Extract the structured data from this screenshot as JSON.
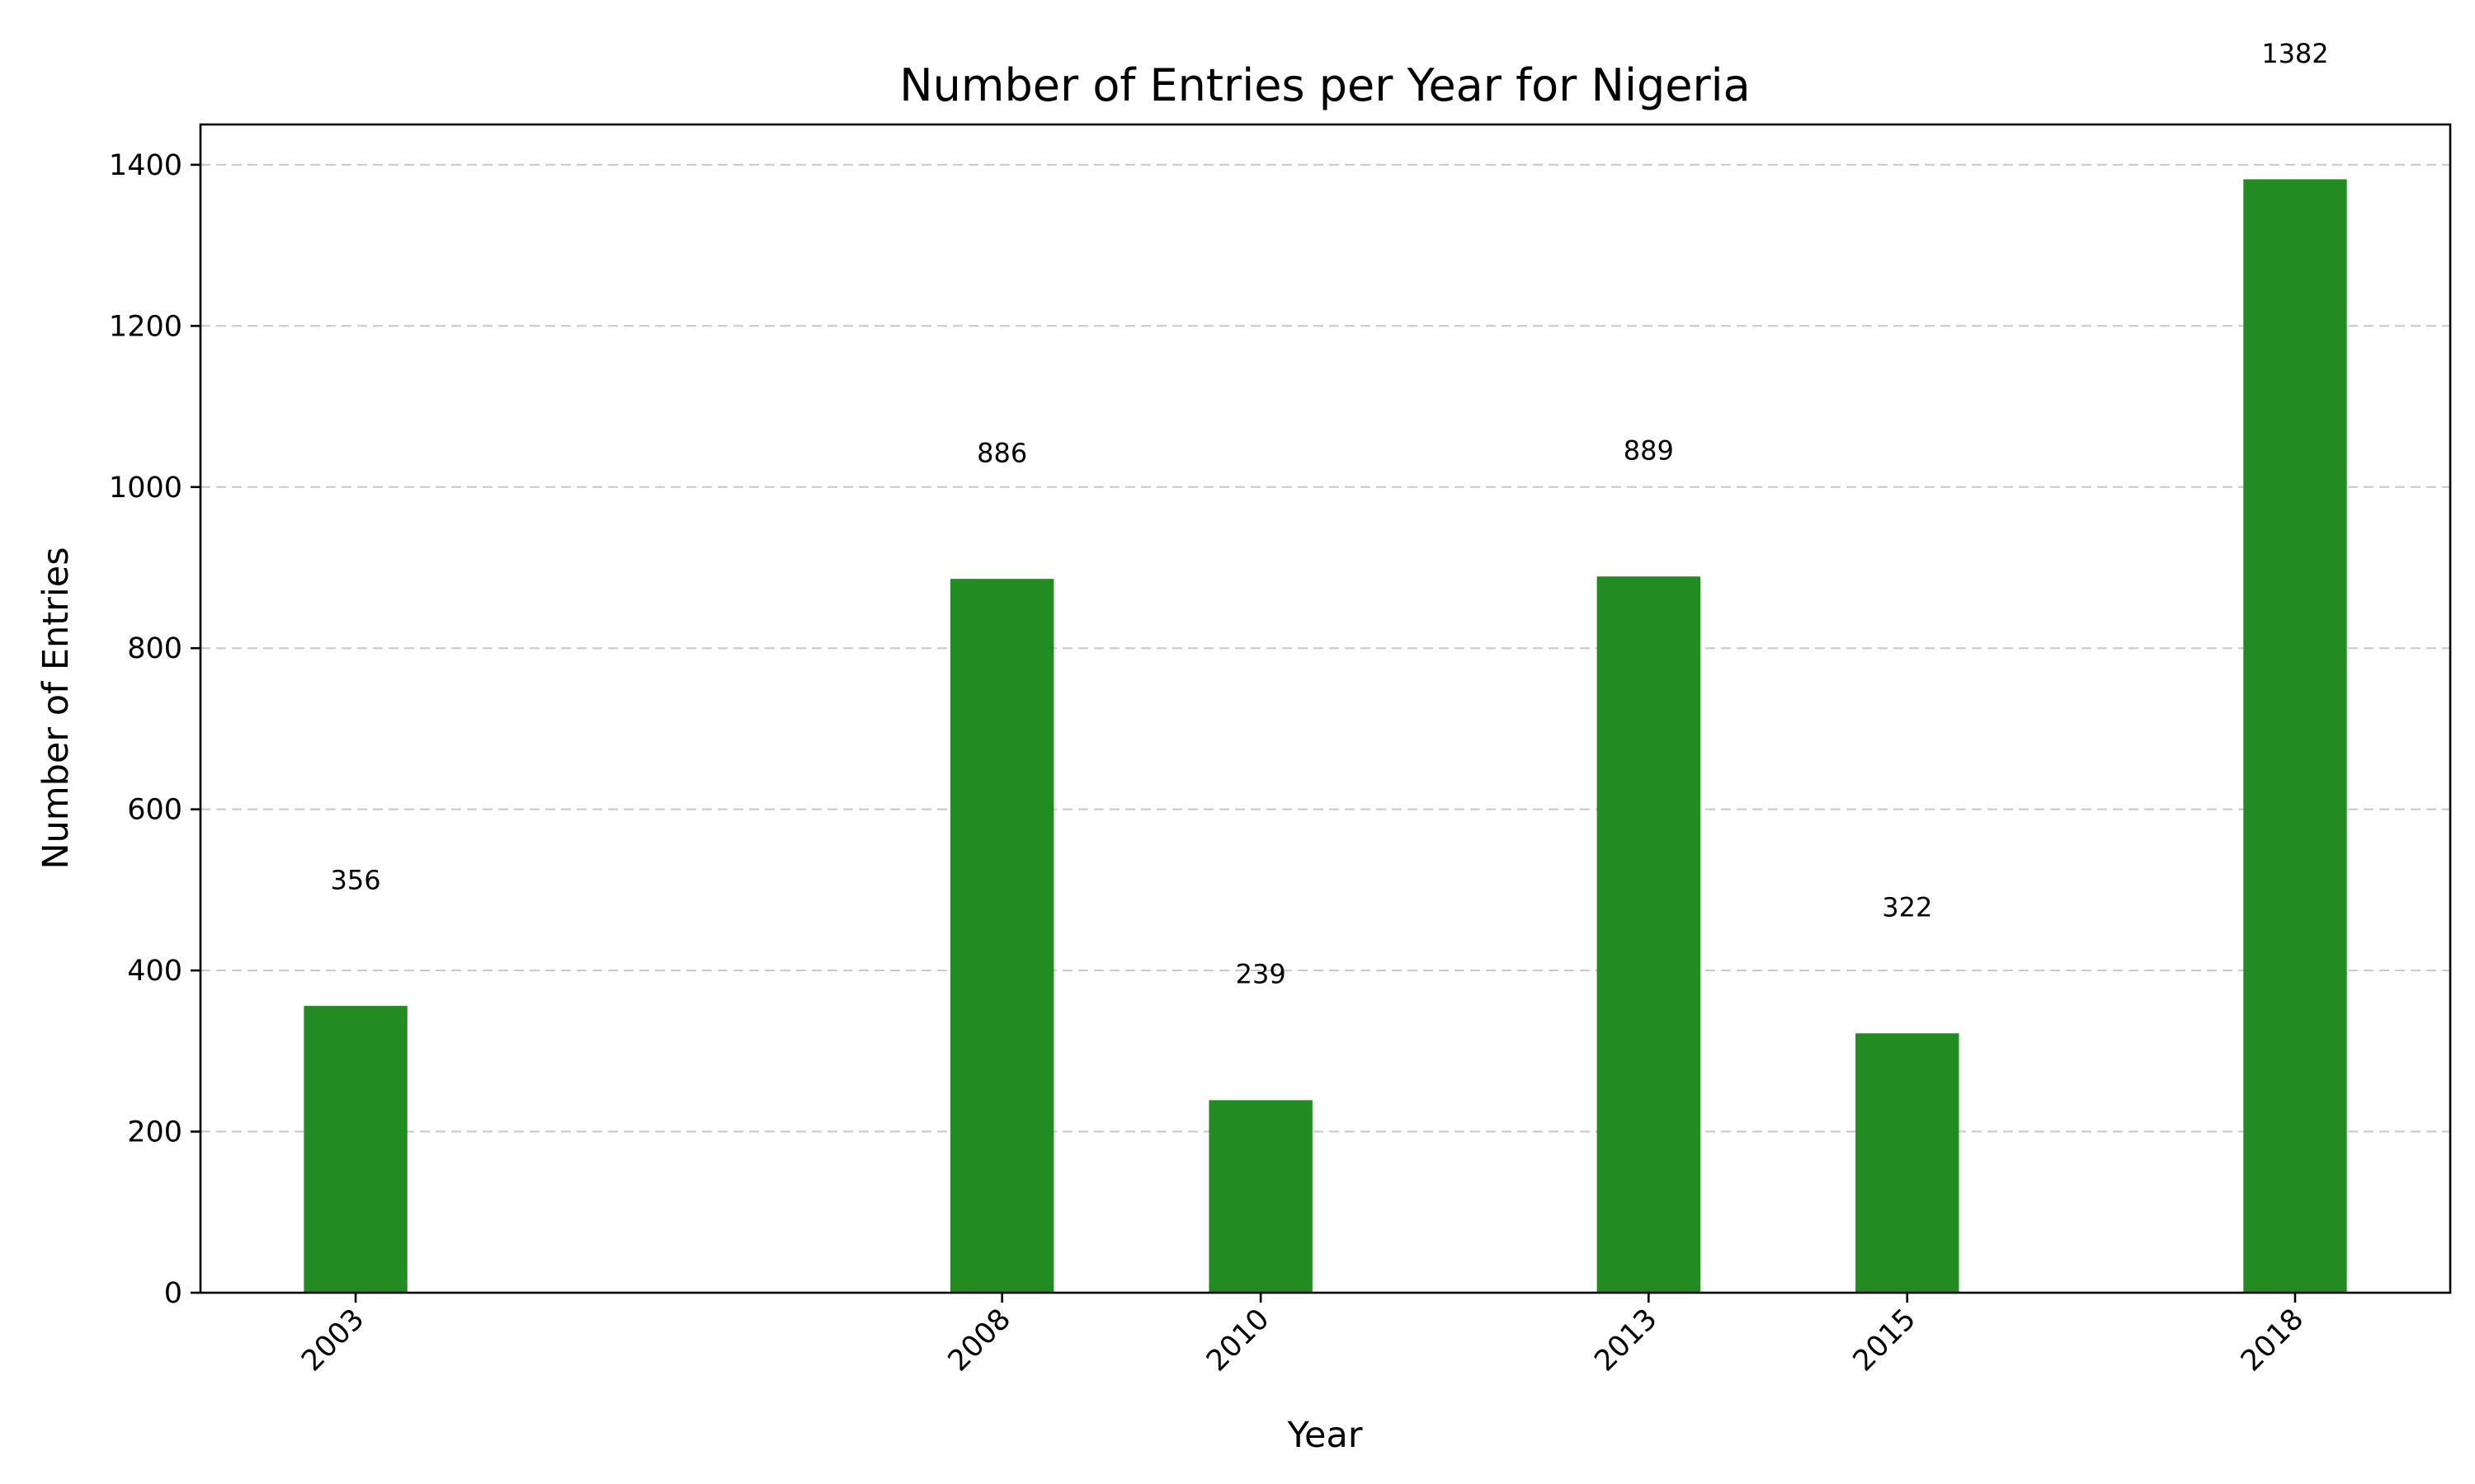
{
  "chart_data": {
    "type": "bar",
    "title": "Number of Entries per Year for Nigeria",
    "xlabel": "Year",
    "ylabel": "Number of Entries",
    "x": [
      2003,
      2008,
      2010,
      2013,
      2015,
      2018
    ],
    "categories": [
      "2003",
      "2008",
      "2010",
      "2013",
      "2015",
      "2018"
    ],
    "values": [
      356,
      886,
      239,
      889,
      322,
      1382
    ],
    "data_labels": [
      "356",
      "886",
      "239",
      "889",
      "322",
      "1382"
    ],
    "yticks": [
      0,
      200,
      400,
      600,
      800,
      1000,
      1200,
      1400
    ],
    "ytick_labels": [
      "0",
      "200",
      "400",
      "600",
      "800",
      "1000",
      "1200",
      "1400"
    ],
    "ylim": [
      0,
      1450
    ],
    "xlim": [
      2001.8,
      2019.2
    ],
    "bar_width": 0.8,
    "bar_color": "#228b22",
    "grid": "y-dashed",
    "legend": "none"
  }
}
